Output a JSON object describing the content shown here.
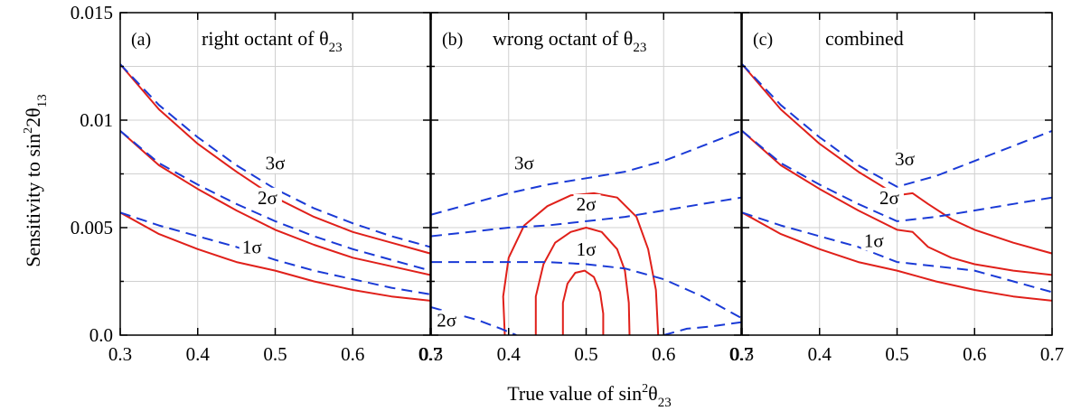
{
  "figure": {
    "xlabel": "True value of  sin",
    "xlabel_sup": "2",
    "xlabel_theta": "θ",
    "xlabel_sub": "23",
    "ylabel": "Sensitivity to  sin",
    "ylabel_sup": "2",
    "ylabel_rest": "2θ",
    "ylabel_sub": "13"
  },
  "chart_data": [
    {
      "type": "line",
      "panel_tag": "(a)",
      "title": "right octant of θ",
      "title_sub": "23",
      "xlim": [
        0.3,
        0.7
      ],
      "ylim": [
        0,
        0.015
      ],
      "grid": true,
      "xticks": [
        "0.3",
        "0.4",
        "0.5",
        "0.6",
        "0.7"
      ],
      "yticks": [
        "0.0",
        "0.005",
        "0.01",
        "0.015"
      ],
      "curve_labels": [
        {
          "text": "1σ",
          "x": 0.47,
          "y": 0.0038
        },
        {
          "text": "2σ",
          "x": 0.49,
          "y": 0.0061
        },
        {
          "text": "3σ",
          "x": 0.5,
          "y": 0.0077
        }
      ],
      "series": [
        {
          "style": "solid",
          "color": "#e0201a",
          "x": [
            0.3,
            0.35,
            0.4,
            0.45,
            0.5,
            0.55,
            0.6,
            0.65,
            0.7
          ],
          "y": [
            0.0126,
            0.0105,
            0.0089,
            0.0076,
            0.0064,
            0.0055,
            0.0048,
            0.0043,
            0.0038
          ]
        },
        {
          "style": "solid",
          "color": "#e0201a",
          "x": [
            0.3,
            0.35,
            0.4,
            0.45,
            0.5,
            0.55,
            0.6,
            0.65,
            0.7
          ],
          "y": [
            0.0095,
            0.0079,
            0.0068,
            0.0058,
            0.0049,
            0.0042,
            0.0036,
            0.0032,
            0.0028
          ]
        },
        {
          "style": "solid",
          "color": "#e0201a",
          "x": [
            0.3,
            0.35,
            0.4,
            0.45,
            0.5,
            0.55,
            0.6,
            0.65,
            0.7
          ],
          "y": [
            0.0057,
            0.0047,
            0.004,
            0.0034,
            0.003,
            0.0025,
            0.0021,
            0.0018,
            0.0016
          ]
        },
        {
          "style": "dashed",
          "color": "#1a3ad6",
          "x": [
            0.3,
            0.35,
            0.4,
            0.45,
            0.5,
            0.55,
            0.6,
            0.65,
            0.7
          ],
          "y": [
            0.0126,
            0.0107,
            0.0092,
            0.0079,
            0.0068,
            0.0059,
            0.0052,
            0.0046,
            0.0041
          ]
        },
        {
          "style": "dashed",
          "color": "#1a3ad6",
          "x": [
            0.3,
            0.35,
            0.4,
            0.45,
            0.5,
            0.55,
            0.6,
            0.65,
            0.7
          ],
          "y": [
            0.0095,
            0.008,
            0.007,
            0.0061,
            0.0053,
            0.0046,
            0.004,
            0.0035,
            0.003
          ]
        },
        {
          "style": "dashed",
          "color": "#1a3ad6",
          "x": [
            0.3,
            0.35,
            0.4,
            0.45,
            0.5,
            0.55,
            0.6,
            0.65,
            0.7
          ],
          "y": [
            0.0057,
            0.0051,
            0.0046,
            0.0041,
            0.0035,
            0.003,
            0.0026,
            0.0022,
            0.0019
          ]
        }
      ]
    },
    {
      "type": "line",
      "panel_tag": "(b)",
      "title": "wrong octant of θ",
      "title_sub": "23",
      "xlim": [
        0.3,
        0.7
      ],
      "ylim": [
        0,
        0.015
      ],
      "grid": true,
      "xticks": [
        "0.3",
        "0.4",
        "0.5",
        "0.6",
        "0.7"
      ],
      "yticks": [
        "0.0",
        "0.005",
        "0.01",
        "0.015"
      ],
      "curve_labels": [
        {
          "text": "3σ",
          "x": 0.42,
          "y": 0.0077
        },
        {
          "text": "2σ",
          "x": 0.5,
          "y": 0.0058
        },
        {
          "text": "1σ",
          "x": 0.5,
          "y": 0.0037
        },
        {
          "text": "2σ",
          "x": 0.32,
          "y": 0.0004
        }
      ],
      "series": [
        {
          "style": "solid",
          "color": "#e0201a",
          "x": [
            0.395,
            0.393,
            0.4,
            0.42,
            0.45,
            0.48,
            0.51,
            0.54,
            0.565,
            0.58,
            0.59,
            0.593
          ],
          "y": [
            0.0,
            0.0018,
            0.0036,
            0.0051,
            0.006,
            0.0065,
            0.0066,
            0.0064,
            0.0055,
            0.004,
            0.0021,
            0.0
          ]
        },
        {
          "style": "solid",
          "color": "#e0201a",
          "x": [
            0.435,
            0.435,
            0.445,
            0.46,
            0.48,
            0.5,
            0.52,
            0.54,
            0.55,
            0.555,
            0.556
          ],
          "y": [
            0.0,
            0.0018,
            0.0033,
            0.0043,
            0.0048,
            0.005,
            0.0048,
            0.004,
            0.003,
            0.0015,
            0.0
          ]
        },
        {
          "style": "solid",
          "color": "#e0201a",
          "x": [
            0.47,
            0.47,
            0.476,
            0.486,
            0.498,
            0.51,
            0.518,
            0.522,
            0.522
          ],
          "y": [
            0.0,
            0.0015,
            0.0024,
            0.0029,
            0.003,
            0.0027,
            0.002,
            0.001,
            0.0
          ]
        },
        {
          "style": "dashed",
          "color": "#1a3ad6",
          "x": [
            0.3,
            0.35,
            0.4,
            0.45,
            0.5,
            0.55,
            0.6,
            0.65,
            0.7
          ],
          "y": [
            0.0056,
            0.0061,
            0.0066,
            0.007,
            0.0073,
            0.0076,
            0.0081,
            0.0088,
            0.0095
          ]
        },
        {
          "style": "dashed",
          "color": "#1a3ad6",
          "x": [
            0.3,
            0.35,
            0.4,
            0.45,
            0.5,
            0.55,
            0.6,
            0.65,
            0.7
          ],
          "y": [
            0.0046,
            0.0048,
            0.005,
            0.0051,
            0.0053,
            0.0055,
            0.0058,
            0.0061,
            0.0064
          ]
        },
        {
          "style": "dashed",
          "color": "#1a3ad6",
          "x": [
            0.3,
            0.35,
            0.4,
            0.45,
            0.5,
            0.55,
            0.6,
            0.65,
            0.7
          ],
          "y": [
            0.0034,
            0.0034,
            0.0034,
            0.0034,
            0.0033,
            0.0031,
            0.0026,
            0.0018,
            0.0008
          ]
        },
        {
          "style": "dashed",
          "color": "#1a3ad6",
          "x": [
            0.3,
            0.33,
            0.36,
            0.39,
            0.41
          ],
          "y": [
            0.0013,
            0.001,
            0.0007,
            0.0003,
            0.0
          ]
        },
        {
          "style": "dashed",
          "color": "#1a3ad6",
          "x": [
            0.6,
            0.63,
            0.66,
            0.7
          ],
          "y": [
            0.0,
            0.0003,
            0.0004,
            0.0006
          ]
        }
      ]
    },
    {
      "type": "line",
      "panel_tag": "(c)",
      "title": "combined",
      "xlim": [
        0.3,
        0.7
      ],
      "ylim": [
        0,
        0.015
      ],
      "grid": true,
      "xticks": [
        "0.3",
        "0.4",
        "0.5",
        "0.6",
        "0.7"
      ],
      "yticks": [
        "0.0",
        "0.005",
        "0.01",
        "0.015"
      ],
      "curve_labels": [
        {
          "text": "3σ",
          "x": 0.51,
          "y": 0.0079
        },
        {
          "text": "2σ",
          "x": 0.49,
          "y": 0.0061
        },
        {
          "text": "1σ",
          "x": 0.47,
          "y": 0.0041
        }
      ],
      "series": [
        {
          "style": "solid",
          "color": "#e0201a",
          "x": [
            0.3,
            0.35,
            0.4,
            0.45,
            0.5,
            0.52,
            0.54,
            0.57,
            0.6,
            0.65,
            0.7
          ],
          "y": [
            0.0126,
            0.0105,
            0.0089,
            0.0076,
            0.0065,
            0.0066,
            0.0061,
            0.0054,
            0.0049,
            0.0043,
            0.0038
          ]
        },
        {
          "style": "solid",
          "color": "#e0201a",
          "x": [
            0.3,
            0.35,
            0.4,
            0.45,
            0.5,
            0.52,
            0.54,
            0.57,
            0.6,
            0.65,
            0.7
          ],
          "y": [
            0.0095,
            0.0079,
            0.0068,
            0.0058,
            0.0049,
            0.0048,
            0.0041,
            0.0036,
            0.0033,
            0.003,
            0.0028
          ]
        },
        {
          "style": "solid",
          "color": "#e0201a",
          "x": [
            0.3,
            0.35,
            0.4,
            0.45,
            0.5,
            0.55,
            0.6,
            0.65,
            0.7
          ],
          "y": [
            0.0057,
            0.0047,
            0.004,
            0.0034,
            0.003,
            0.0025,
            0.0021,
            0.0018,
            0.0016
          ]
        },
        {
          "style": "dashed",
          "color": "#1a3ad6",
          "x": [
            0.3,
            0.35,
            0.4,
            0.45,
            0.5,
            0.55,
            0.6,
            0.65,
            0.7
          ],
          "y": [
            0.0126,
            0.0107,
            0.0092,
            0.0079,
            0.0069,
            0.0074,
            0.0081,
            0.0088,
            0.0095
          ]
        },
        {
          "style": "dashed",
          "color": "#1a3ad6",
          "x": [
            0.3,
            0.35,
            0.4,
            0.45,
            0.5,
            0.55,
            0.6,
            0.65,
            0.7
          ],
          "y": [
            0.0095,
            0.008,
            0.007,
            0.0061,
            0.0053,
            0.0055,
            0.0058,
            0.0061,
            0.0064
          ]
        },
        {
          "style": "dashed",
          "color": "#1a3ad6",
          "x": [
            0.3,
            0.35,
            0.4,
            0.45,
            0.5,
            0.55,
            0.6,
            0.65,
            0.7
          ],
          "y": [
            0.0057,
            0.0051,
            0.0046,
            0.0041,
            0.0034,
            0.0032,
            0.003,
            0.0025,
            0.002
          ]
        }
      ]
    }
  ]
}
